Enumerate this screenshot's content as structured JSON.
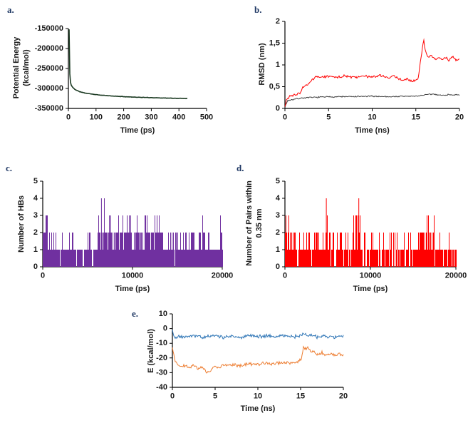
{
  "figure": {
    "background": "#ffffff",
    "colors": {
      "panel_label": "#1f3864",
      "axis_text": "#1a1a1a",
      "axis_line": "#000000"
    }
  },
  "chart_data": [
    {
      "id": "a",
      "panel_label": "a.",
      "type": "line",
      "xlabel": "Time (ps)",
      "ylabel": "Potential Energy\n(kcal/mol)",
      "xlim": [
        0,
        500
      ],
      "ylim": [
        -350000,
        -150000
      ],
      "xticks": [
        0,
        100,
        200,
        300,
        400,
        500
      ],
      "xtick_labels": [
        "0",
        "100",
        "200",
        "300",
        "400",
        "500"
      ],
      "yticks": [
        -150000,
        -200000,
        -250000,
        -300000,
        -350000
      ],
      "ytick_labels": [
        "-150000",
        "-200000",
        "-250000",
        "-300000",
        "-350000"
      ],
      "series": [
        {
          "name": "potential-energy",
          "color": "#1b3a22",
          "noise": 600,
          "seed": 11,
          "width": 1.6,
          "points": [
            [
              3,
              -152000
            ],
            [
              4,
              -215000
            ],
            [
              5,
              -262000
            ],
            [
              7,
              -283000
            ],
            [
              10,
              -291000
            ],
            [
              15,
              -297000
            ],
            [
              25,
              -303000
            ],
            [
              40,
              -308000
            ],
            [
              60,
              -311500
            ],
            [
              80,
              -313500
            ],
            [
              100,
              -315500
            ],
            [
              130,
              -317500
            ],
            [
              160,
              -319000
            ],
            [
              200,
              -320500
            ],
            [
              250,
              -322000
            ],
            [
              300,
              -323000
            ],
            [
              350,
              -324000
            ],
            [
              400,
              -324800
            ],
            [
              430,
              -325200
            ]
          ]
        }
      ]
    },
    {
      "id": "b",
      "panel_label": "b.",
      "type": "line",
      "xlabel": "Time (ns)",
      "ylabel": "RMSD (nm)",
      "xlim": [
        0,
        20
      ],
      "ylim": [
        0,
        2
      ],
      "xticks": [
        0,
        5,
        10,
        15,
        20
      ],
      "xtick_labels": [
        "0",
        "5",
        "10",
        "15",
        "20"
      ],
      "yticks": [
        0,
        0.5,
        1,
        1.5,
        2
      ],
      "ytick_labels": [
        "0",
        "0,5",
        "1",
        "1,5",
        "2"
      ],
      "series": [
        {
          "name": "rmsd-gray-trace",
          "color": "#404040",
          "noise": 0.018,
          "seed": 7,
          "width": 1,
          "points": [
            [
              0,
              0.03
            ],
            [
              0.3,
              0.18
            ],
            [
              1,
              0.21
            ],
            [
              2,
              0.24
            ],
            [
              4,
              0.26
            ],
            [
              6,
              0.27
            ],
            [
              8,
              0.27
            ],
            [
              10,
              0.28
            ],
            [
              12,
              0.27
            ],
            [
              14,
              0.28
            ],
            [
              15,
              0.28
            ],
            [
              16,
              0.31
            ],
            [
              17,
              0.33
            ],
            [
              18,
              0.3
            ],
            [
              19,
              0.32
            ],
            [
              20,
              0.3
            ]
          ]
        },
        {
          "name": "rmsd-red-trace",
          "color": "#ff0000",
          "noise": 0.035,
          "seed": 3,
          "width": 1,
          "points": [
            [
              0,
              0.05
            ],
            [
              0.2,
              0.22
            ],
            [
              0.6,
              0.28
            ],
            [
              1,
              0.3
            ],
            [
              1.4,
              0.33
            ],
            [
              1.8,
              0.36
            ],
            [
              2.0,
              0.47
            ],
            [
              2.3,
              0.5
            ],
            [
              2.6,
              0.55
            ],
            [
              3.0,
              0.63
            ],
            [
              3.4,
              0.7
            ],
            [
              4,
              0.72
            ],
            [
              5,
              0.74
            ],
            [
              6,
              0.72
            ],
            [
              7,
              0.75
            ],
            [
              8,
              0.71
            ],
            [
              9,
              0.74
            ],
            [
              10,
              0.72
            ],
            [
              11,
              0.75
            ],
            [
              12,
              0.71
            ],
            [
              12.5,
              0.74
            ],
            [
              13,
              0.69
            ],
            [
              13.5,
              0.64
            ],
            [
              14,
              0.69
            ],
            [
              14.5,
              0.63
            ],
            [
              15,
              0.66
            ],
            [
              15.3,
              0.72
            ],
            [
              15.5,
              1.05
            ],
            [
              15.7,
              1.3
            ],
            [
              15.9,
              1.58
            ],
            [
              16.1,
              1.3
            ],
            [
              16.4,
              1.18
            ],
            [
              16.8,
              1.22
            ],
            [
              17.2,
              1.12
            ],
            [
              17.6,
              1.18
            ],
            [
              18,
              1.12
            ],
            [
              18.4,
              1.17
            ],
            [
              18.8,
              1.1
            ],
            [
              19.2,
              1.2
            ],
            [
              19.6,
              1.1
            ],
            [
              20,
              1.14
            ]
          ]
        }
      ]
    },
    {
      "id": "c",
      "panel_label": "c.",
      "type": "spikes",
      "xlabel": "Time (ps)",
      "ylabel": "Number of HBs",
      "xlim": [
        0,
        20000
      ],
      "ylim": [
        0,
        5
      ],
      "xticks": [
        0,
        10000,
        20000
      ],
      "xtick_labels": [
        "0",
        "10000",
        "20000"
      ],
      "yticks": [
        0,
        1,
        2,
        3,
        4,
        5
      ],
      "ytick_labels": [
        "0",
        "1",
        "2",
        "3",
        "4",
        "5"
      ],
      "series": [
        {
          "name": "hb-count-bars",
          "color": "#7030a0",
          "seed": 21,
          "segments": [
            {
              "from": 0,
              "to": 500,
              "levels": [
                2,
                3
              ],
              "weights": [
                0.45,
                0.55
              ]
            },
            {
              "from": 500,
              "to": 1700,
              "levels": [
                1,
                2
              ],
              "weights": [
                0.6,
                0.4
              ]
            },
            {
              "from": 1700,
              "to": 6100,
              "levels": [
                0,
                1,
                2
              ],
              "weights": [
                0.1,
                0.75,
                0.15
              ]
            },
            {
              "from": 6100,
              "to": 6900,
              "levels": [
                1,
                2,
                3,
                4
              ],
              "weights": [
                0.2,
                0.4,
                0.3,
                0.1
              ]
            },
            {
              "from": 6900,
              "to": 13200,
              "levels": [
                1,
                2,
                3
              ],
              "weights": [
                0.25,
                0.55,
                0.2
              ]
            },
            {
              "from": 13200,
              "to": 16200,
              "levels": [
                0,
                1,
                2
              ],
              "weights": [
                0.12,
                0.63,
                0.25
              ]
            },
            {
              "from": 16200,
              "to": 20000,
              "levels": [
                1,
                2,
                3
              ],
              "weights": [
                0.55,
                0.35,
                0.1
              ]
            }
          ],
          "spikes": [
            [
              6500,
              4
            ]
          ]
        }
      ]
    },
    {
      "id": "d",
      "panel_label": "d.",
      "type": "spikes",
      "xlabel": "Time (ps)",
      "ylabel": "Number of Pairs within\n0.35 nm",
      "xlim": [
        0,
        20000
      ],
      "ylim": [
        0,
        5
      ],
      "xticks": [
        0,
        10000,
        20000
      ],
      "xtick_labels": [
        "0",
        "10000",
        "20000"
      ],
      "yticks": [
        0,
        1,
        2,
        3,
        4,
        5
      ],
      "ytick_labels": [
        "0",
        "1",
        "2",
        "3",
        "4",
        "5"
      ],
      "series": [
        {
          "name": "pair-count-bars",
          "color": "#ff0000",
          "seed": 33,
          "segments": [
            {
              "from": 0,
              "to": 600,
              "levels": [
                1,
                2,
                3
              ],
              "weights": [
                0.3,
                0.4,
                0.3
              ]
            },
            {
              "from": 600,
              "to": 4000,
              "levels": [
                0,
                1,
                2
              ],
              "weights": [
                0.15,
                0.65,
                0.2
              ]
            },
            {
              "from": 4000,
              "to": 5000,
              "levels": [
                1,
                2,
                3
              ],
              "weights": [
                0.5,
                0.3,
                0.2
              ]
            },
            {
              "from": 5000,
              "to": 8000,
              "levels": [
                0,
                1,
                2
              ],
              "weights": [
                0.2,
                0.6,
                0.2
              ]
            },
            {
              "from": 8000,
              "to": 9000,
              "levels": [
                1,
                2,
                3
              ],
              "weights": [
                0.5,
                0.3,
                0.2
              ]
            },
            {
              "from": 9000,
              "to": 15500,
              "levels": [
                0,
                1,
                2
              ],
              "weights": [
                0.25,
                0.6,
                0.15
              ]
            },
            {
              "from": 15500,
              "to": 17500,
              "levels": [
                1,
                2,
                3
              ],
              "weights": [
                0.45,
                0.35,
                0.2
              ]
            },
            {
              "from": 17500,
              "to": 20000,
              "levels": [
                0,
                1,
                2
              ],
              "weights": [
                0.2,
                0.6,
                0.2
              ]
            }
          ],
          "spikes": [
            [
              4800,
              4
            ],
            [
              8600,
              4
            ]
          ]
        }
      ]
    },
    {
      "id": "e",
      "panel_label": "e.",
      "type": "line",
      "xlabel": "Time (ns)",
      "ylabel": "E (kcal/mol)",
      "xlim": [
        0,
        20
      ],
      "ylim": [
        -40,
        10
      ],
      "xticks": [
        0,
        5,
        10,
        15,
        20
      ],
      "xtick_labels": [
        "0",
        "5",
        "10",
        "15",
        "20"
      ],
      "yticks": [
        10,
        0,
        -10,
        -20,
        -30,
        -40
      ],
      "ytick_labels": [
        "10",
        "0",
        "-10",
        "-20",
        "-30",
        "-40"
      ],
      "series": [
        {
          "name": "e-blue-trace",
          "color": "#2e75b6",
          "noise": 1.4,
          "seed": 5,
          "width": 1,
          "points": [
            [
              0,
              -1.5
            ],
            [
              0.3,
              -7
            ],
            [
              0.8,
              -5
            ],
            [
              1.5,
              -6
            ],
            [
              2.5,
              -4.5
            ],
            [
              3.5,
              -6
            ],
            [
              5,
              -4.5
            ],
            [
              6,
              -6
            ],
            [
              7,
              -5
            ],
            [
              8,
              -6
            ],
            [
              9,
              -4.5
            ],
            [
              10,
              -5.5
            ],
            [
              11,
              -5
            ],
            [
              12,
              -5.5
            ],
            [
              13,
              -4.5
            ],
            [
              14,
              -5.5
            ],
            [
              15,
              -5
            ],
            [
              15.4,
              -3.5
            ],
            [
              15.8,
              -5
            ],
            [
              16.5,
              -4.5
            ],
            [
              17,
              -6
            ],
            [
              17.5,
              -4.5
            ],
            [
              18,
              -6
            ],
            [
              18.5,
              -5
            ],
            [
              19,
              -6.5
            ],
            [
              19.5,
              -5
            ],
            [
              20,
              -5.5
            ]
          ]
        },
        {
          "name": "e-orange-trace",
          "color": "#ed7d31",
          "noise": 1.4,
          "seed": 9,
          "width": 1,
          "points": [
            [
              0,
              -13
            ],
            [
              0.3,
              -22
            ],
            [
              0.8,
              -26
            ],
            [
              1.5,
              -25
            ],
            [
              2,
              -27
            ],
            [
              2.5,
              -25
            ],
            [
              3,
              -28
            ],
            [
              3.5,
              -26
            ],
            [
              4,
              -30
            ],
            [
              4.5,
              -28
            ],
            [
              5,
              -26
            ],
            [
              5.5,
              -27
            ],
            [
              6,
              -25
            ],
            [
              7,
              -24.5
            ],
            [
              8,
              -25.5
            ],
            [
              9,
              -24
            ],
            [
              10,
              -24.5
            ],
            [
              11,
              -23.5
            ],
            [
              12,
              -24
            ],
            [
              13,
              -23
            ],
            [
              14,
              -23.5
            ],
            [
              14.7,
              -22.5
            ],
            [
              15.1,
              -21
            ],
            [
              15.35,
              -12
            ],
            [
              15.6,
              -14
            ],
            [
              15.9,
              -13
            ],
            [
              16.2,
              -17
            ],
            [
              16.6,
              -15.5
            ],
            [
              17,
              -18
            ],
            [
              17.5,
              -16.5
            ],
            [
              18,
              -18
            ],
            [
              18.5,
              -17
            ],
            [
              19,
              -18.5
            ],
            [
              19.5,
              -17.5
            ],
            [
              20,
              -18
            ]
          ]
        }
      ]
    }
  ]
}
